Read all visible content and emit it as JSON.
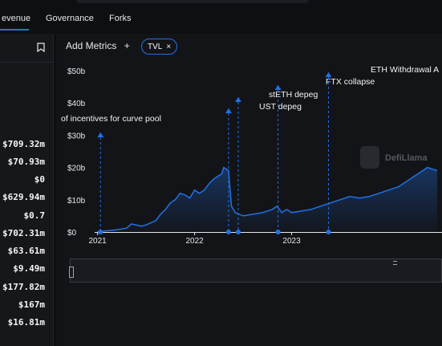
{
  "tabs": [
    {
      "label": "evenue"
    },
    {
      "label": "Governance"
    },
    {
      "label": "Forks"
    }
  ],
  "left_values": [
    "$709.32m",
    "$70.93m",
    "$0",
    "$629.94m",
    "$0.7",
    "$702.31m",
    "$63.61m",
    "$9.49m",
    "$177.82m",
    "$167m",
    "$16.81m"
  ],
  "toolbar": {
    "add_metrics_label": "Add Metrics",
    "add_icon": "+",
    "tvl_chip_label": "TVL",
    "close_icon": "×"
  },
  "watermark": {
    "text": "DefiLlama"
  },
  "colors": {
    "accent": "#2172e5",
    "background": "#131418",
    "line": "#2172e5"
  },
  "chart_data": {
    "type": "area",
    "ylim": [
      0,
      50
    ],
    "yticks": [
      {
        "value": 0,
        "label": "$0"
      },
      {
        "value": 10,
        "label": "$10b"
      },
      {
        "value": 20,
        "label": "$20b"
      },
      {
        "value": 30,
        "label": "$30b"
      },
      {
        "value": 40,
        "label": "$40b"
      },
      {
        "value": 50,
        "label": "$50b"
      }
    ],
    "xticks": [
      {
        "value": 2021,
        "label": "2021"
      },
      {
        "value": 2022,
        "label": "2022"
      },
      {
        "value": 2023,
        "label": "2023"
      }
    ],
    "xlim": [
      2020.97,
      2024.55
    ],
    "series": [
      {
        "x": [
          2021.0,
          2021.1,
          2021.2,
          2021.3,
          2021.35,
          2021.45,
          2021.5,
          2021.6,
          2021.65,
          2021.7,
          2021.75,
          2021.8,
          2021.85,
          2021.9,
          2021.95,
          2022.0,
          2022.05,
          2022.1,
          2022.15,
          2022.2,
          2022.25,
          2022.28,
          2022.3,
          2022.35,
          2022.38,
          2022.42,
          2022.5,
          2022.6,
          2022.7,
          2022.8,
          2022.85,
          2022.9,
          2022.95,
          2023.0,
          2023.1,
          2023.2,
          2023.3,
          2023.4,
          2023.5,
          2023.6,
          2023.7,
          2023.8,
          2023.9,
          2024.0,
          2024.1,
          2024.2,
          2024.3,
          2024.4,
          2024.5
        ],
        "y": [
          0.2,
          0.4,
          0.7,
          1.2,
          2.5,
          1.8,
          2.2,
          3.5,
          5.5,
          7,
          9,
          10,
          12,
          11.5,
          10.5,
          13,
          12,
          13,
          15,
          16.5,
          17.5,
          18,
          20,
          19,
          8,
          6,
          5,
          5.5,
          6,
          7,
          8,
          6,
          7,
          6,
          6.5,
          7,
          8,
          9,
          10,
          11,
          10.5,
          11,
          12,
          13,
          14,
          16,
          18,
          20,
          19
        ]
      }
    ],
    "events": [
      {
        "x": 2021.03,
        "label": "of incentives for curve pool"
      },
      {
        "x": 2022.35,
        "label": "UST depeg"
      },
      {
        "x": 2022.45,
        "label": "stETH depeg"
      },
      {
        "x": 2022.86,
        "label": "FTX collapse"
      },
      {
        "x": 2023.38,
        "label": "ETH Withdrawal A"
      }
    ]
  }
}
